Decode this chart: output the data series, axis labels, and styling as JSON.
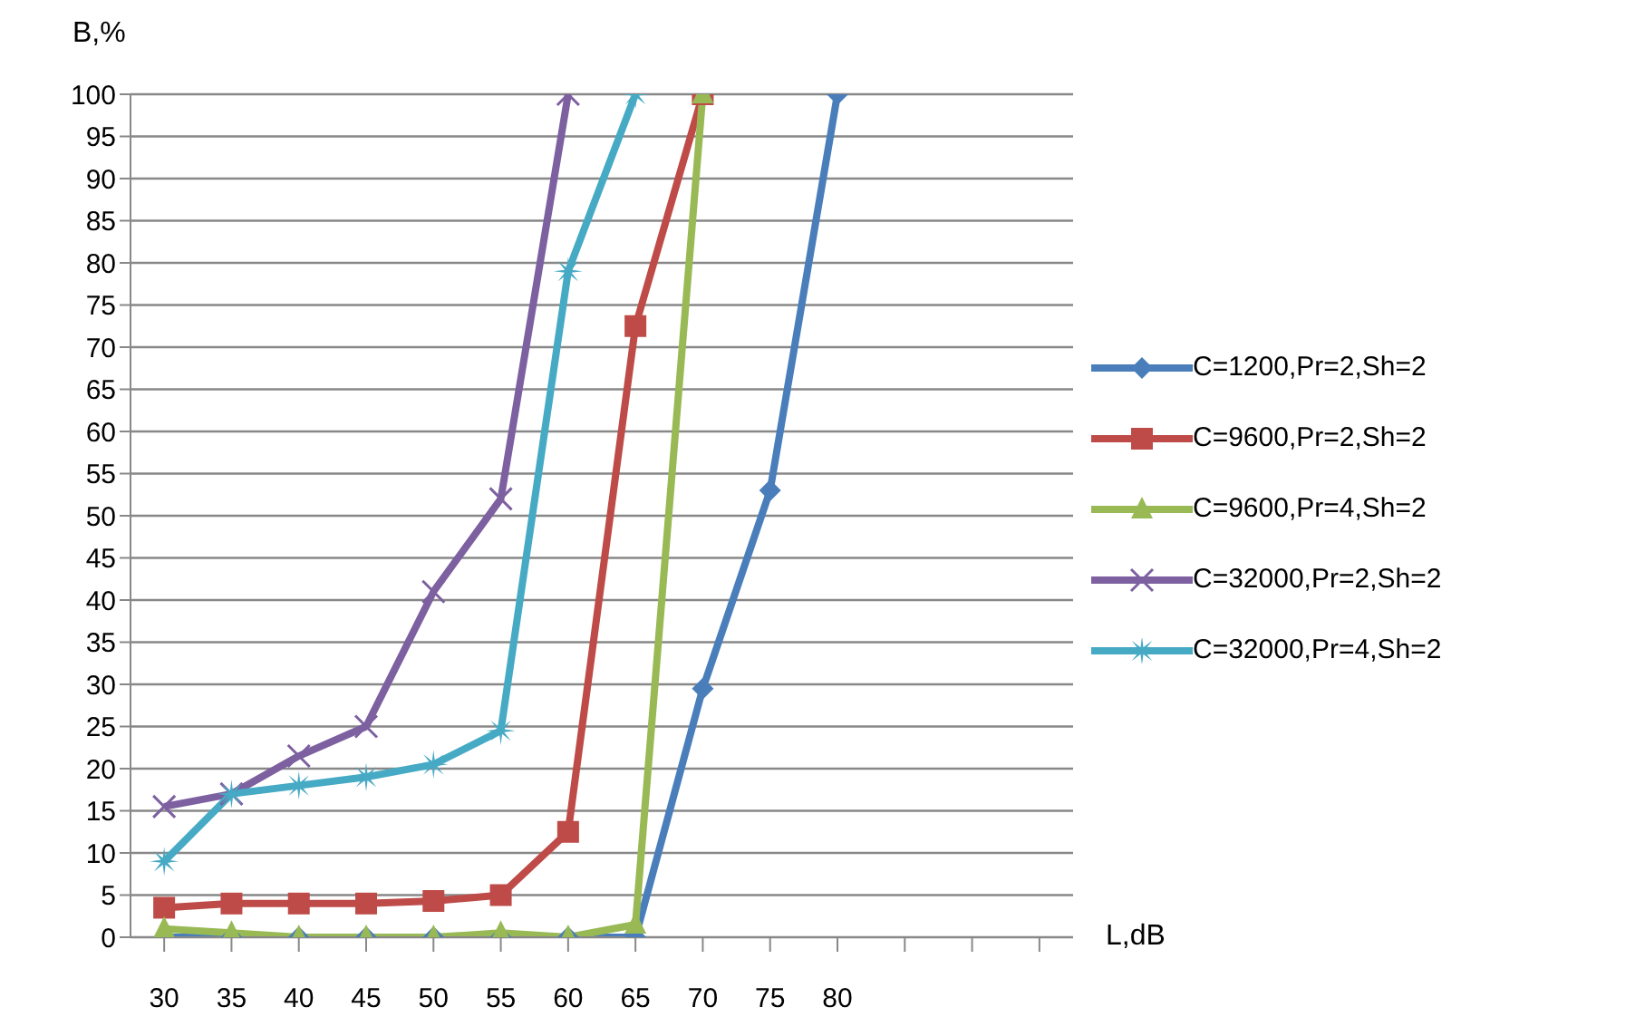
{
  "chart_data": {
    "type": "line",
    "xlabel": "L,dB",
    "ylabel": "B,%",
    "categories": [
      "30",
      "35",
      "40",
      "45",
      "50",
      "55",
      "60",
      "65",
      "70",
      "75",
      "80",
      null,
      null,
      null
    ],
    "series": [
      {
        "name": "C=1200,Pr=2,Sh=2",
        "color": "#4a7ebb",
        "marker": "diamond",
        "values": [
          0,
          0,
          0,
          0,
          0,
          0,
          0,
          0,
          29.5,
          53,
          100,
          null,
          null,
          null
        ]
      },
      {
        "name": "C=9600,Pr=2,Sh=2",
        "color": "#be4b48",
        "marker": "square",
        "values": [
          3.5,
          4,
          4,
          4,
          4.3,
          5,
          12.5,
          72.5,
          100,
          null,
          null,
          null,
          null,
          null
        ]
      },
      {
        "name": "C=9600,Pr=4,Sh=2",
        "color": "#98b954",
        "marker": "triangle",
        "values": [
          1,
          0.5,
          0,
          0,
          0,
          0.5,
          0,
          1.5,
          100,
          null,
          null,
          null,
          null,
          null
        ]
      },
      {
        "name": "C=32000,Pr=2,Sh=2",
        "color": "#7d60a0",
        "marker": "cross",
        "values": [
          15.5,
          17,
          21.5,
          25,
          41,
          52,
          100,
          null,
          null,
          null,
          null,
          null,
          null,
          null
        ]
      },
      {
        "name": "C=32000,Pr=4,Sh=2",
        "color": "#46aac5",
        "marker": "star",
        "values": [
          9,
          17,
          18,
          19,
          20.5,
          24.5,
          79,
          100,
          null,
          null,
          null,
          null,
          null,
          null
        ]
      }
    ],
    "ylim": [
      0,
      100
    ],
    "yticks": [
      0,
      5,
      10,
      15,
      20,
      25,
      30,
      35,
      40,
      45,
      50,
      55,
      60,
      65,
      70,
      75,
      80,
      85,
      90,
      95,
      100
    ],
    "grid": "y",
    "legend": "right",
    "line_style": "solid"
  }
}
